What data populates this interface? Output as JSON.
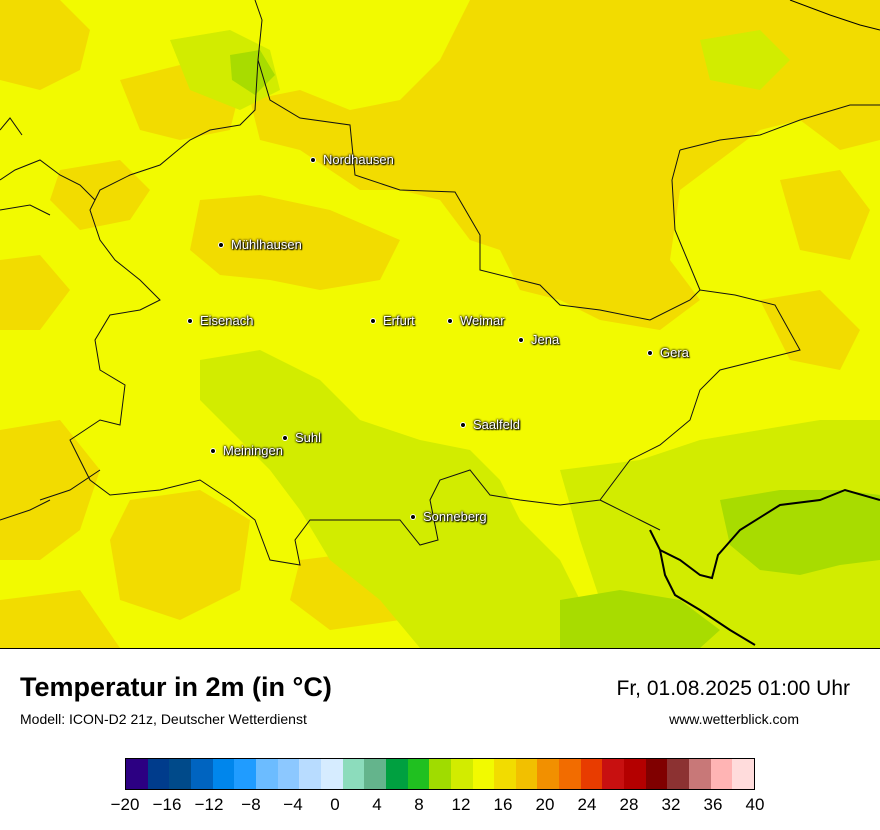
{
  "map": {
    "cities": [
      {
        "name": "Nordhausen"
      },
      {
        "name": "Mühlhausen"
      },
      {
        "name": "Eisenach"
      },
      {
        "name": "Erfurt"
      },
      {
        "name": "Weimar"
      },
      {
        "name": "Jena"
      },
      {
        "name": "Gera"
      },
      {
        "name": "Saalfeld"
      },
      {
        "name": "Suhl"
      },
      {
        "name": "Meiningen"
      },
      {
        "name": "Sonneberg"
      }
    ],
    "field_colors": {
      "t14": "#a8dc00",
      "t16": "#d2ec00",
      "t18": "#f2fa00",
      "t20": "#f2dc00"
    }
  },
  "header": {
    "title": "Temperatur in 2m (in °C)",
    "subtitle": "Modell: ICON-D2 21z, Deutscher Wetterdienst",
    "datetime": "Fr, 01.08.2025 01:00 Uhr",
    "website": "www.wetterblick.com"
  },
  "legend": {
    "colors": [
      "#2c0082",
      "#003c8c",
      "#004a8a",
      "#0064c0",
      "#0086ec",
      "#209cff",
      "#6cbcff",
      "#8cc8ff",
      "#b8dcff",
      "#d6ecff",
      "#8cdcbc",
      "#64b48c",
      "#00a040",
      "#20c020",
      "#a0dc00",
      "#d2ec00",
      "#f2fa00",
      "#f2dc00",
      "#f2c000",
      "#f29000",
      "#f26c00",
      "#e83c00",
      "#c81010",
      "#b40000",
      "#800000",
      "#8c3232",
      "#c87878",
      "#ffb4b4",
      "#ffdcdc"
    ],
    "tick_labels": [
      "−20",
      "−16",
      "−12",
      "−8",
      "−4",
      "0",
      "4",
      "8",
      "12",
      "16",
      "20",
      "24",
      "28",
      "32",
      "36",
      "40"
    ]
  }
}
